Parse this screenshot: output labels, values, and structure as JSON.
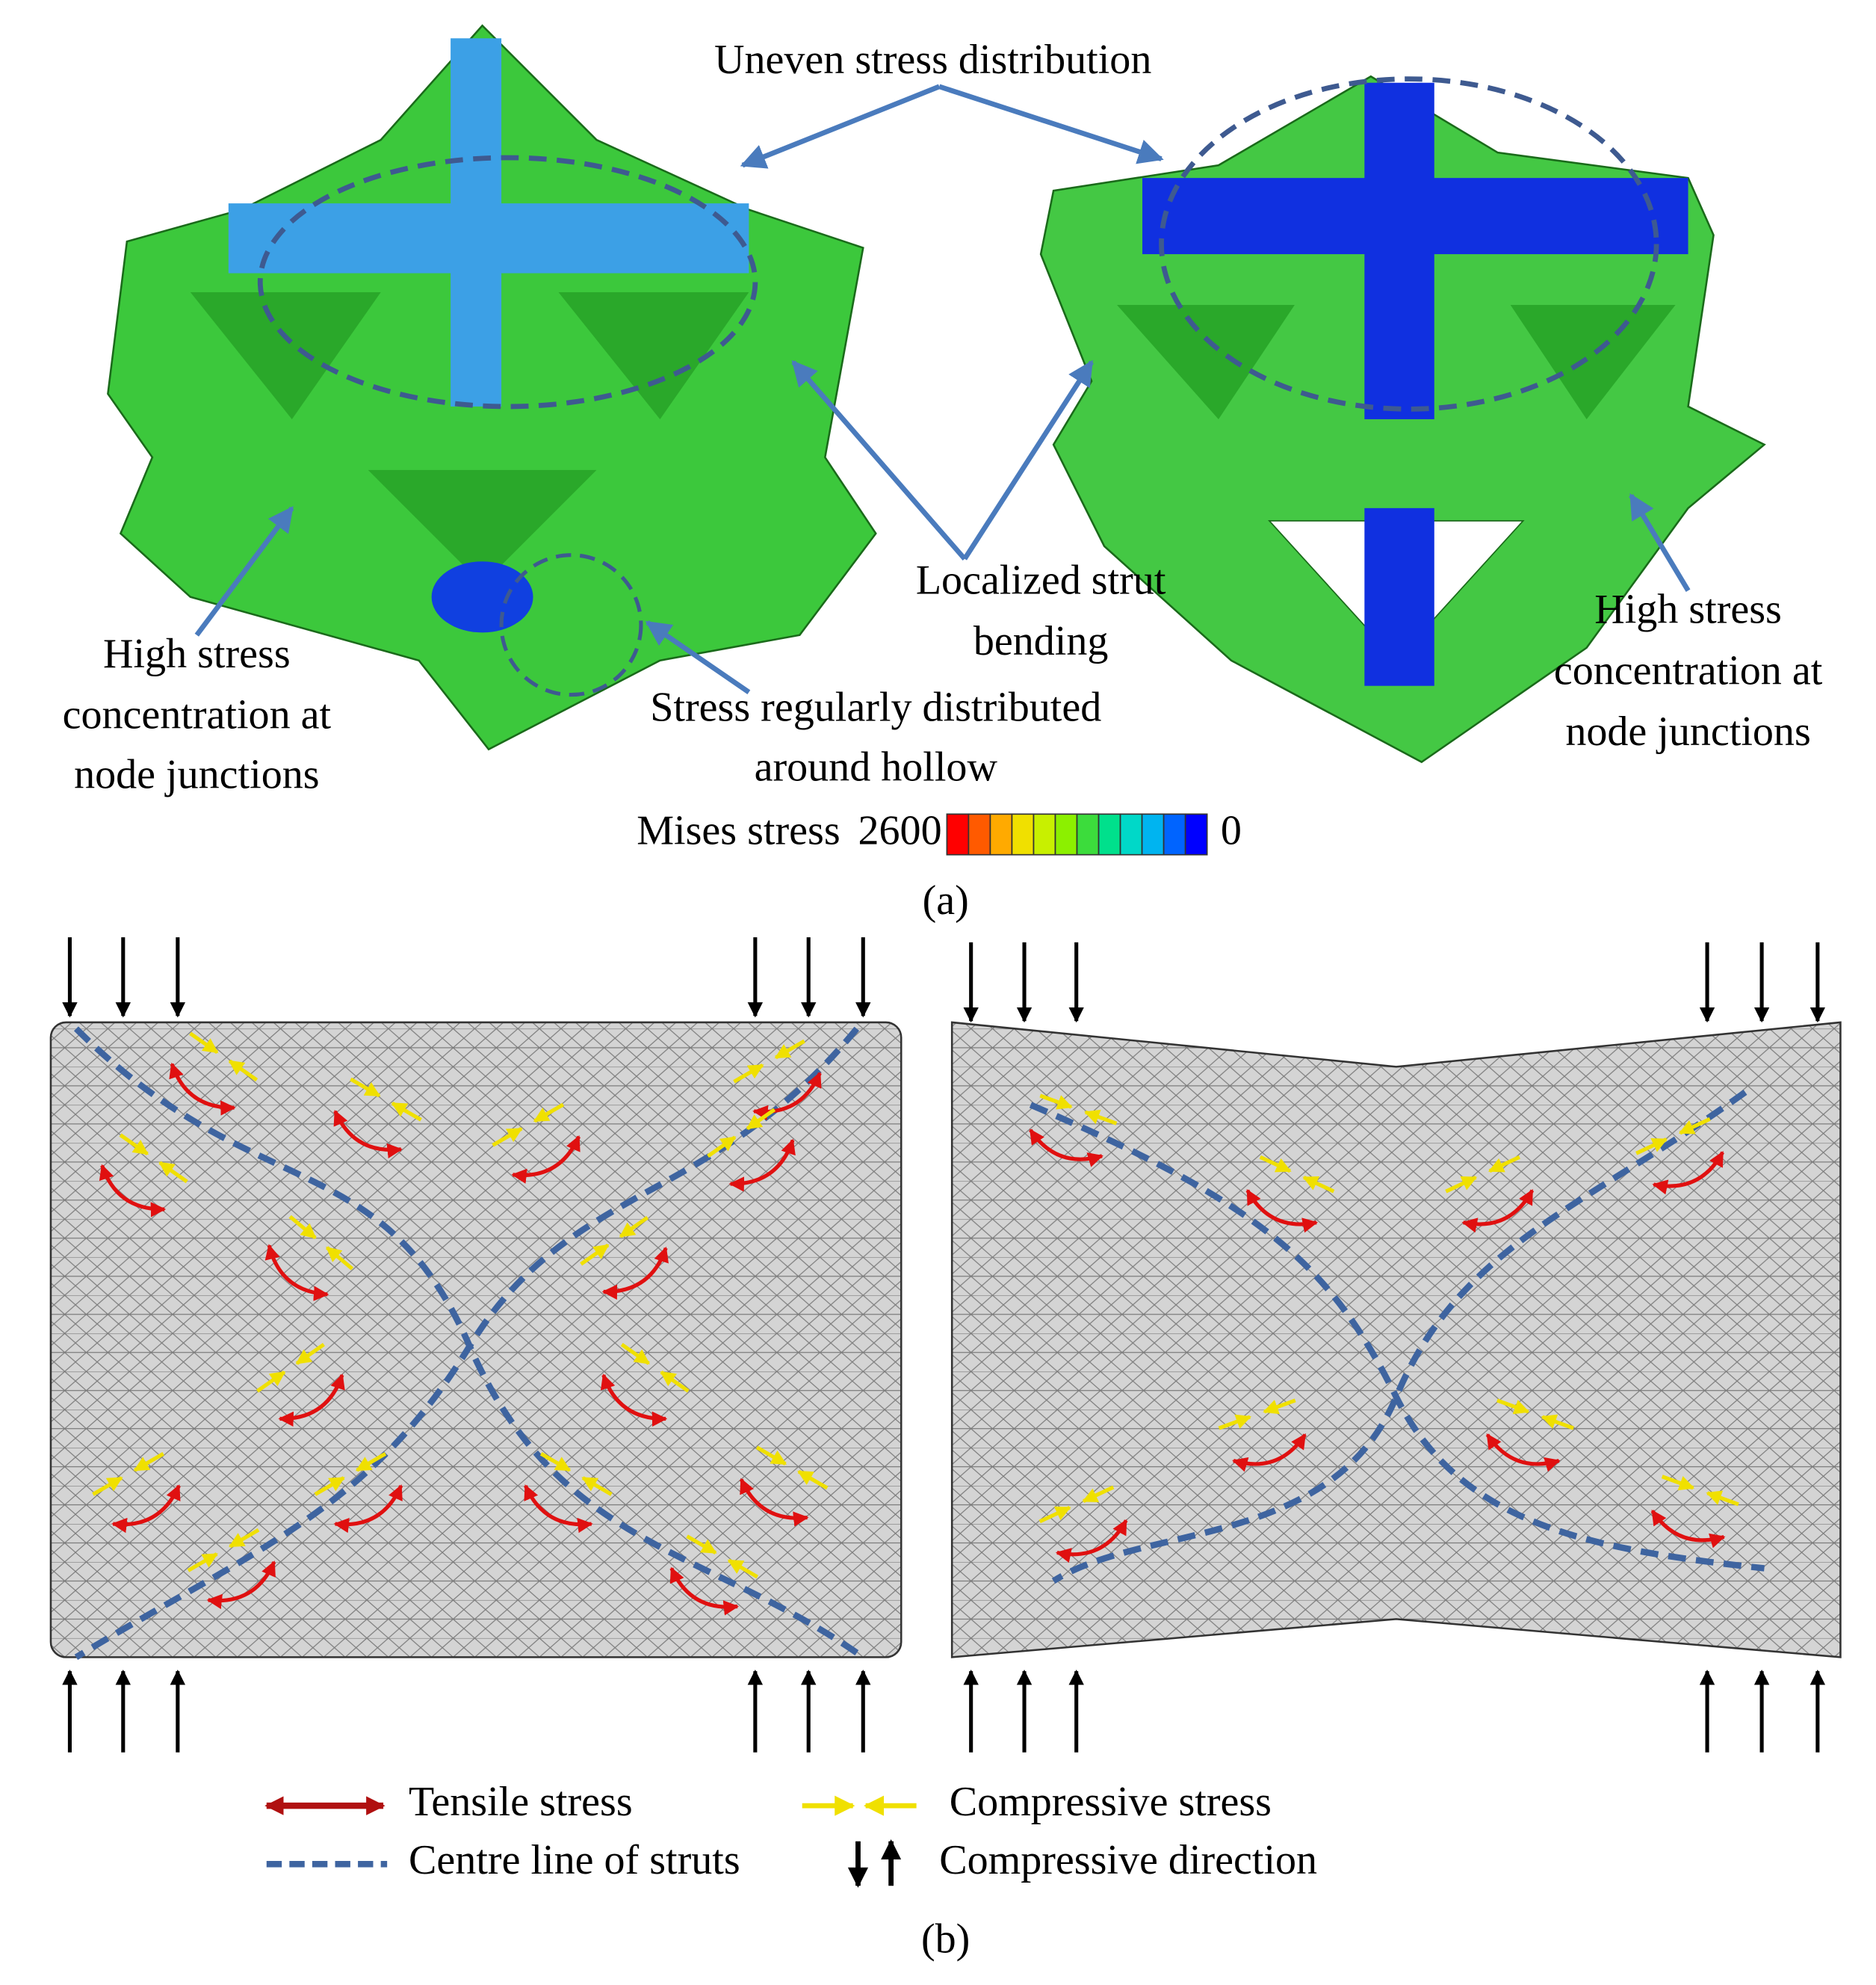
{
  "panel_a": {
    "label": "(a)",
    "annotations": {
      "uneven": "Uneven stress distribution",
      "bending": [
        "Localized strut",
        "bending"
      ],
      "left_high": [
        "High stress",
        "concentration at",
        "node junctions"
      ],
      "hollow": [
        "Stress regularly distributed",
        "around hollow"
      ],
      "right_high": [
        "High stress",
        "concentration at",
        "node junctions"
      ]
    },
    "colorbar": {
      "title": "Mises stress",
      "max": 2600,
      "min": 0
    }
  },
  "panel_b": {
    "label": "(b)",
    "legend": [
      "Tensile stress",
      "Centre line of struts",
      "Compressive stress",
      "Compressive direction"
    ]
  }
}
